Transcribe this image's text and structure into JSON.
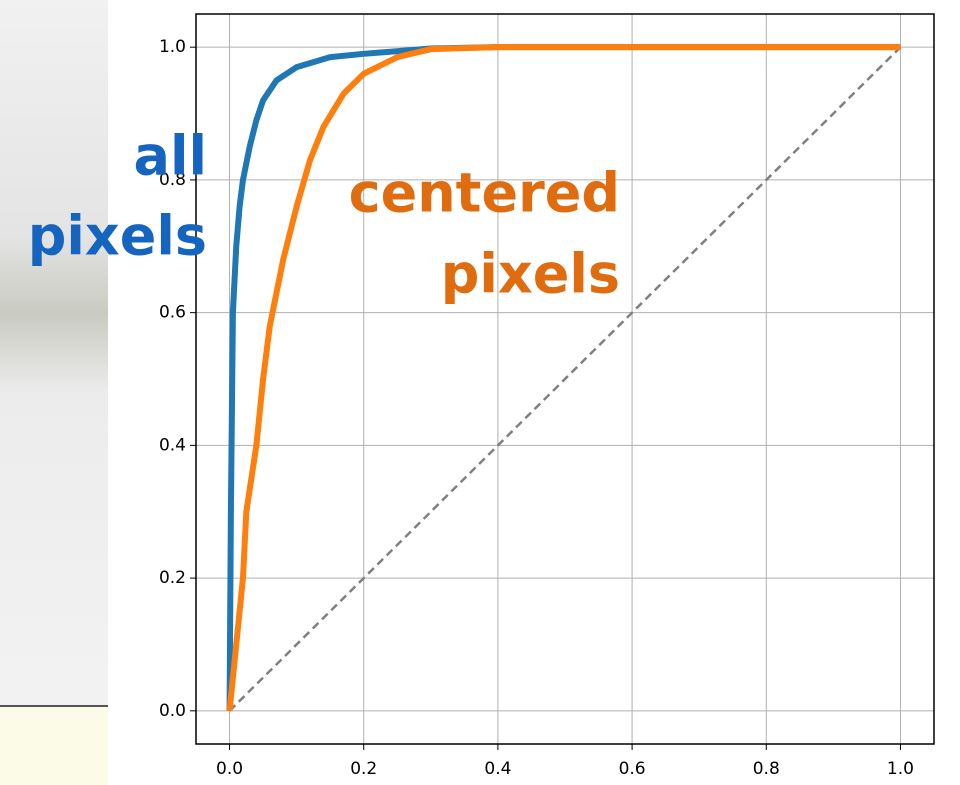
{
  "chart_data": {
    "type": "line",
    "xlim": [
      -0.05,
      1.05
    ],
    "ylim": [
      -0.05,
      1.05
    ],
    "xticks": [
      {
        "value": 0,
        "label": "0.0"
      },
      {
        "value": 0.2,
        "label": "0.2"
      },
      {
        "value": 0.4,
        "label": "0.4"
      },
      {
        "value": 0.6,
        "label": "0.6"
      },
      {
        "value": 0.8,
        "label": "0.8"
      },
      {
        "value": 1,
        "label": "1.0"
      }
    ],
    "yticks": [
      {
        "value": 0,
        "label": "0.0"
      },
      {
        "value": 0.2,
        "label": "0.2"
      },
      {
        "value": 0.4,
        "label": "0.4"
      },
      {
        "value": 0.6,
        "label": "0.6"
      },
      {
        "value": 0.8,
        "label": "0.8"
      },
      {
        "value": 1,
        "label": "1.0"
      }
    ],
    "grid": true,
    "series": [
      {
        "color": "#1f77b4",
        "x": [
          0,
          0.002,
          0.005,
          0.01,
          0.015,
          0.02,
          0.03,
          0.04,
          0.05,
          0.07,
          0.1,
          0.15,
          0.2,
          0.3,
          0.4,
          1
        ],
        "values": [
          0,
          0.3,
          0.6,
          0.7,
          0.76,
          0.8,
          0.85,
          0.89,
          0.92,
          0.95,
          0.97,
          0.985,
          0.99,
          0.998,
          1,
          1
        ]
      },
      {
        "color": "#ff7f0e",
        "x": [
          0,
          0.01,
          0.02,
          0.025,
          0.04,
          0.05,
          0.06,
          0.08,
          0.1,
          0.12,
          0.14,
          0.17,
          0.2,
          0.25,
          0.3,
          0.4,
          1
        ],
        "values": [
          0,
          0.1,
          0.2,
          0.3,
          0.4,
          0.5,
          0.58,
          0.68,
          0.76,
          0.83,
          0.88,
          0.93,
          0.96,
          0.985,
          0.997,
          1,
          1
        ]
      },
      {
        "color": "#808080",
        "dashed": true,
        "x": [
          0,
          1
        ],
        "values": [
          0,
          1
        ]
      }
    ],
    "annotations": [
      {
        "lines": [
          "all",
          "pixels"
        ],
        "color": "#1565c0"
      },
      {
        "lines": [
          "centered",
          "pixels"
        ],
        "color": "#e06c10"
      }
    ]
  }
}
